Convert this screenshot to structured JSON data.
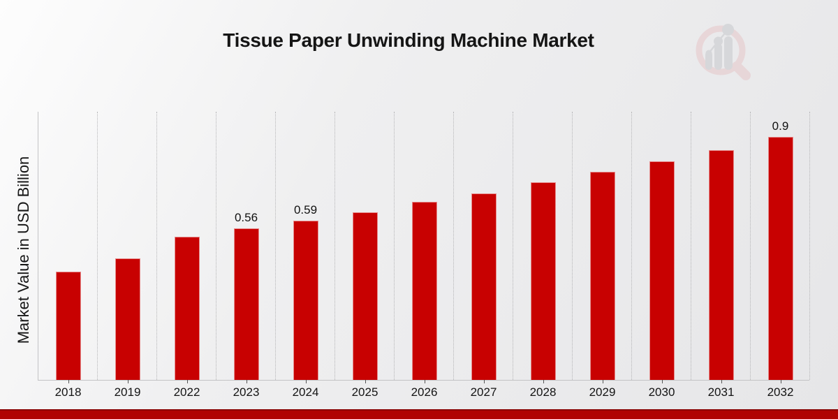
{
  "title": "Tissue Paper Unwinding Machine Market",
  "y_axis_label": "Market Value in USD Billion",
  "logo": {
    "name": "market-research-magnifier-logo"
  },
  "colors": {
    "bar": "#c80101",
    "grid": "#b5b5b7",
    "axis": "#c3c3c5",
    "footer_band": "#b00303",
    "footer_band_edge": "#8a0101",
    "logo_ring": "#e6c6c9",
    "logo_gray": "#c7c8cc"
  },
  "chart_data": {
    "type": "bar",
    "title": "Tissue Paper Unwinding Machine Market",
    "xlabel": "",
    "ylabel": "Market Value in USD Billion",
    "categories": [
      "2018",
      "2019",
      "2022",
      "2023",
      "2024",
      "2025",
      "2026",
      "2027",
      "2028",
      "2029",
      "2030",
      "2031",
      "2032"
    ],
    "values": [
      0.4,
      0.45,
      0.53,
      0.56,
      0.59,
      0.62,
      0.66,
      0.69,
      0.73,
      0.77,
      0.81,
      0.85,
      0.9
    ],
    "data_labels": [
      "",
      "",
      "",
      "0.56",
      "0.59",
      "",
      "",
      "",
      "",
      "",
      "",
      "",
      "0.9"
    ],
    "ylim": [
      0,
      1.0
    ],
    "grid": "vertical-dotted",
    "legend": "none",
    "bar_color": "#c80101"
  }
}
